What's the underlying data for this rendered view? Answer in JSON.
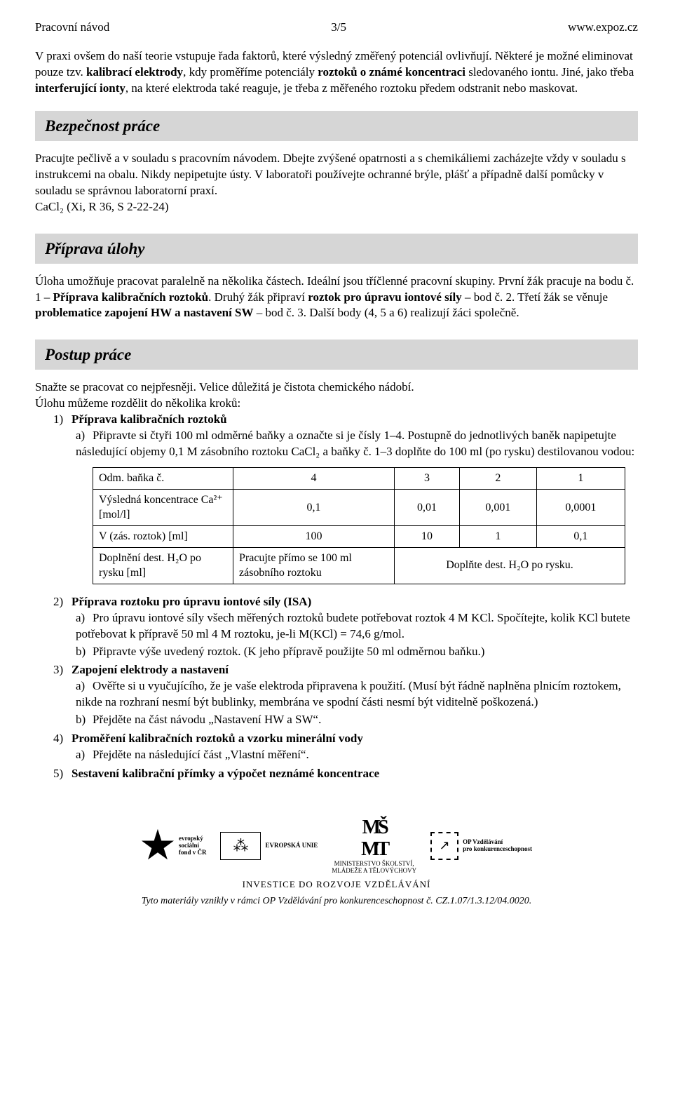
{
  "header": {
    "left": "Pracovní návod",
    "center": "3/5",
    "right": "www.expoz.cz"
  },
  "intro": {
    "p1a": "V praxi ovšem do naší teorie vstupuje řada faktorů, které výsledný změřený potenciál ovlivňují. Některé je možné eliminovat pouze tzv. ",
    "p1b": "kalibrací elektrody",
    "p1c": ", kdy proměříme potenciály ",
    "p1d": "roztoků o známé koncentraci",
    "p1e": " sledovaného iontu. Jiné, jako třeba ",
    "p1f": "interferující ionty",
    "p1g": ", na které elektroda také reaguje, je třeba z měřeného roztoku předem odstranit nebo maskovat."
  },
  "safety": {
    "heading": "Bezpečnost práce",
    "body": "Pracujte pečlivě a v souladu s pracovním návodem. Dbejte zvýšené opatrnosti a s chemikáliemi zacházejte vždy v souladu s instrukcemi na obalu. Nikdy nepipetujte ústy. V laboratoři používejte ochranné brýle, plášť a případně další pomůcky v souladu se správnou laboratorní praxí.",
    "chem": "CaCl₂ (Xi, R 36, S 2-22-24)"
  },
  "prep": {
    "heading": "Příprava úlohy",
    "a": "Úloha umožňuje pracovat paralelně na několika částech. Ideální jsou tříčlenné pracovní skupiny. První žák pracuje na bodu č. 1 – ",
    "b": "Příprava kalibračních roztoků",
    "c": ". Druhý žák připraví ",
    "d": "roztok pro úpravu iontové síly",
    "e": " – bod č. 2. Třetí žák se věnuje ",
    "f": "problematice zapojení HW a nastavení SW",
    "g": " – bod č. 3. Další body (4, 5 a 6) realizují žáci společně."
  },
  "proc": {
    "heading": "Postup práce",
    "intro1": "Snažte se pracovat co nejpřesněji. Velice důležitá je čistota chemického nádobí.",
    "intro2": "Úlohu můžeme rozdělit do několika kroků:",
    "step1": {
      "title": "Příprava kalibračních roztoků",
      "a": "Připravte si čtyři 100 ml odměrné baňky a označte si je čísly 1–4. Postupně do jednotlivých baněk napipetujte následující objemy 0,1 M zásobního roztoku CaCl₂ a baňky č. 1–3 doplňte do 100 ml (po rysku) destilovanou vodou:"
    },
    "table": {
      "r1": {
        "lbl": "Odm. baňka č.",
        "c4": "4",
        "c3": "3",
        "c2": "2",
        "c1": "1"
      },
      "r2": {
        "lbl": "Výsledná koncentrace Ca²⁺ [mol/l]",
        "c4": "0,1",
        "c3": "0,01",
        "c2": "0,001",
        "c1": "0,0001"
      },
      "r3": {
        "lbl": "V (zás. roztok) [ml]",
        "c4": "100",
        "c3": "10",
        "c2": "1",
        "c1": "0,1"
      },
      "r4": {
        "lbl": "Doplnění dest. H₂O po rysku [ml]",
        "c4": "Pracujte přímo se 100 ml zásobního roztoku",
        "rest": "Doplňte dest. H₂O po rysku."
      }
    },
    "step2": {
      "title": "Příprava roztoku pro úpravu iontové síly (ISA)",
      "a": "Pro úpravu iontové síly všech měřených roztoků budete potřebovat roztok 4 M KCl. Spočítejte, kolik KCl butete potřebovat k přípravě 50 ml 4 M roztoku, je-li M(KCl) = 74,6 g/mol.",
      "b": "Připravte výše uvedený roztok. (K jeho přípravě použijte 50 ml odměrnou baňku.)"
    },
    "step3": {
      "title": "Zapojení elektrody a nastavení",
      "a": "Ověřte si u vyučujícího, že je vaše elektroda připravena k použití. (Musí být řádně naplněna plnicím roztokem, nikde na rozhraní nesmí být bublinky, membrána ve spodní části nesmí být viditelně poškozená.)",
      "b": "Přejděte na část návodu „Nastavení HW a SW“."
    },
    "step4": {
      "title": "Proměření kalibračních roztoků a vzorku minerální vody",
      "a": "Přejděte na následující část „Vlastní měření“."
    },
    "step5": {
      "title": "Sestavení kalibrační přímky a výpočet neznámé koncentrace"
    }
  },
  "footer": {
    "esf1": "evropský",
    "esf2": "sociální",
    "esf3": "fond v ČR",
    "eu": "EVROPSKÁ UNIE",
    "msmt1": "MINISTERSTVO ŠKOLSTVÍ,",
    "msmt2": "MLÁDEŽE A TĚLOVÝCHOVY",
    "op1": "OP Vzdělávání",
    "op2": "pro konkurenceschopnost",
    "invest": "INVESTICE DO ROZVOJE VZDĚLÁVÁNÍ",
    "credit": "Tyto materiály vznikly v rámci OP Vzdělávání pro konkurenceschopnost č. CZ.1.07/1.3.12/04.0020."
  }
}
